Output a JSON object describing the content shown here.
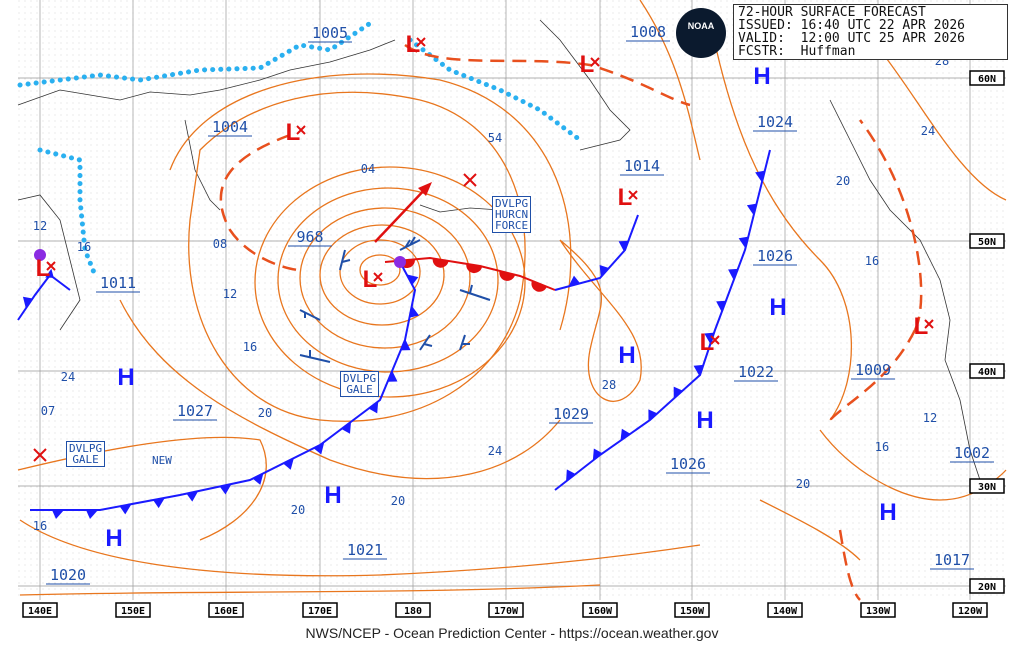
{
  "header": {
    "title": "72-HOUR SURFACE FORECAST",
    "issued": "ISSUED: 16:40 UTC 22 APR 2026",
    "valid": "VALID:  12:00 UTC 25 APR 2026",
    "forecaster": "FCSTR:  Huffman"
  },
  "logo": "NOAA",
  "credit": "NWS/NCEP - Ocean Prediction Center - https://ocean.weather.gov",
  "longitude_labels": [
    "140E",
    "150E",
    "160E",
    "170E",
    "180",
    "170W",
    "160W",
    "150W",
    "140W",
    "130W",
    "120W"
  ],
  "latitude_labels": [
    "60N",
    "50N",
    "40N",
    "30N",
    "20N"
  ],
  "pressure_labels": [
    "1005",
    "1008",
    "1004",
    "54",
    "04",
    "1014",
    "1024",
    "968",
    "08",
    "1026",
    "1011",
    "12",
    "16",
    "28",
    "1022",
    "1009",
    "24",
    "07",
    "1027",
    "20",
    "1029",
    "12",
    "1002",
    "16",
    "24",
    "1026",
    "20",
    "20",
    "20",
    "1021",
    "16",
    "1020",
    "1017",
    "28",
    "24",
    "20",
    "16",
    "12",
    "16"
  ],
  "annotations": {
    "new": "NEW"
  },
  "warnings": [
    {
      "lines": [
        "DVLPG",
        "HURCN",
        "FORCE"
      ]
    },
    {
      "lines": [
        "DVLPG",
        "GALE"
      ]
    },
    {
      "lines": [
        "DVLPG",
        "GALE"
      ]
    }
  ],
  "high_symbol": "H",
  "low_symbol": "L",
  "colors": {
    "isobar": "#e8761e",
    "high": "#1a1aff",
    "low": "#e01010",
    "cold_front": "#1a1aff",
    "warm_front": "#e01010",
    "ice": "#2ab0f0",
    "label": "#1f4fa8"
  }
}
